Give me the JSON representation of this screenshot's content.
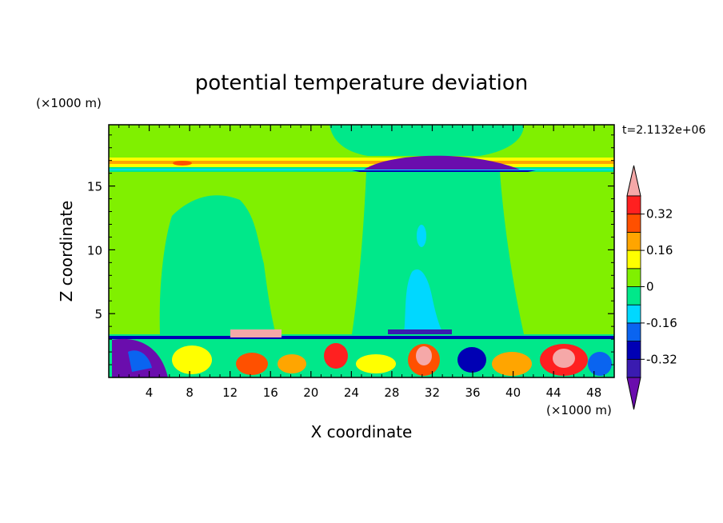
{
  "chart_data": {
    "type": "heatmap",
    "title": "potential temperature deviation",
    "xlabel": "X coordinate",
    "ylabel": "Z coordinate",
    "x_unit": "(×1000 m)",
    "y_unit": "(×1000 m)",
    "time_label": "t=2.1132e+06",
    "xlim": [
      0,
      50
    ],
    "ylim": [
      0,
      19.8
    ],
    "x_ticks": [
      4,
      8,
      12,
      16,
      20,
      24,
      28,
      32,
      36,
      40,
      44,
      48
    ],
    "y_ticks": [
      5,
      10,
      15
    ],
    "colorbar": {
      "levels": [
        -0.4,
        -0.32,
        -0.24,
        -0.16,
        -0.08,
        0,
        0.08,
        0.16,
        0.24,
        0.32,
        0.4
      ],
      "labels": [
        "-0.32",
        "-0.16",
        "0",
        "0.16",
        "0.32"
      ],
      "label_values": [
        -0.32,
        -0.16,
        0,
        0.16,
        0.32
      ],
      "colors": [
        "#6a0dad",
        "#3a1bb0",
        "#0000b4",
        "#0a64f0",
        "#00d8ff",
        "#00e88a",
        "#80f000",
        "#ffff00",
        "#ffa500",
        "#ff5000",
        "#ff2020",
        "#f5a8a8"
      ],
      "extend": "both"
    }
  }
}
